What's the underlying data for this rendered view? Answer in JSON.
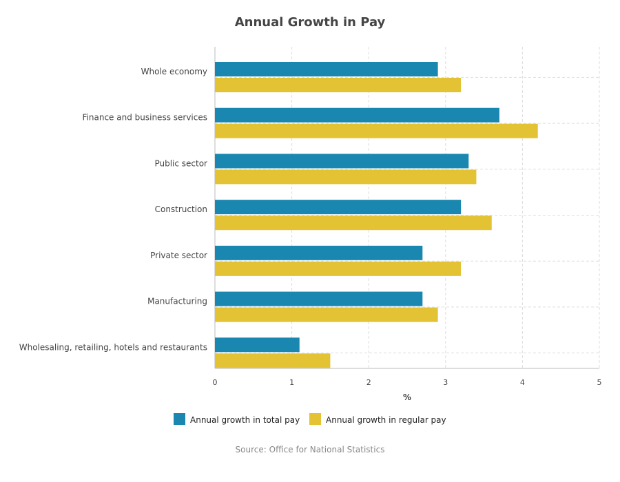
{
  "chart_data": {
    "type": "bar",
    "orientation": "horizontal",
    "title": "Annual Growth in Pay",
    "xlabel": "%",
    "ylabel": "",
    "xlim": [
      0,
      5
    ],
    "ticks": [
      0,
      1,
      2,
      3,
      4,
      5
    ],
    "grid": true,
    "legend_position": "bottom",
    "categories": [
      "Whole economy",
      "Finance and business services",
      "Public sector",
      "Construction",
      "Private sector",
      "Manufacturing",
      "Wholesaling, retailing, hotels and restaurants"
    ],
    "series": [
      {
        "name": "Annual growth in total pay",
        "color": "#1a87b0",
        "values": [
          2.9,
          3.7,
          3.3,
          3.2,
          2.7,
          2.7,
          1.1
        ]
      },
      {
        "name": "Annual growth in regular pay",
        "color": "#e3c334",
        "values": [
          3.2,
          4.2,
          3.4,
          3.6,
          3.2,
          2.9,
          1.5
        ]
      }
    ],
    "source": "Source: Office for National Statistics"
  }
}
